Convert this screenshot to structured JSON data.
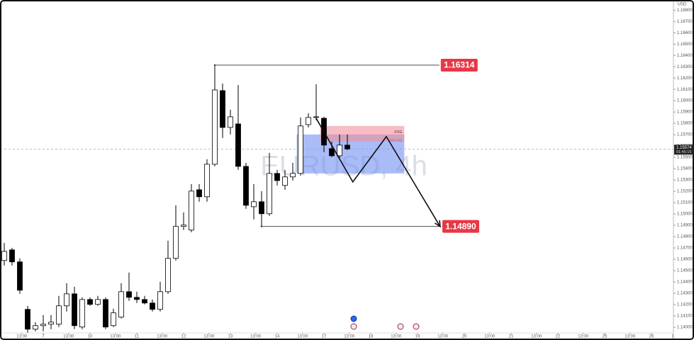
{
  "chart_data": {
    "type": "candlestick",
    "watermark": "EURUSD, 4h",
    "currency": "USD",
    "categories": [
      null,
      null,
      null,
      null,
      null,
      null,
      null,
      null,
      null,
      null,
      null,
      null,
      null,
      null,
      null,
      null,
      null,
      null,
      null,
      null,
      null,
      null,
      null,
      null,
      null,
      null,
      null,
      null,
      null,
      null,
      null,
      null,
      null,
      null,
      null,
      null,
      null,
      null,
      null,
      null,
      null,
      null,
      null,
      null,
      null
    ],
    "open": [
      1.14589,
      1.14683,
      1.14577,
      1.14158,
      1.13983,
      1.14014,
      1.14027,
      1.14027,
      1.14189,
      1.14295,
      1.14002,
      1.14245,
      1.14202,
      1.14245,
      1.14014,
      1.14089,
      1.14314,
      1.14264,
      1.14245,
      1.14214,
      1.14158,
      1.14314,
      1.14608,
      1.1489,
      1.14858,
      1.15214,
      1.15152,
      1.15439,
      1.16089,
      1.15764,
      1.15795,
      1.1542,
      1.15064,
      1.15108,
      1.15002,
      1.15358,
      1.15252,
      1.15327,
      1.15358,
      1.15789,
      1.15852,
      1.15845,
      1.15577,
      1.15514,
      1.15608
    ],
    "high": [
      1.14745,
      1.14701,
      1.14608,
      1.14189,
      1.14045,
      1.14108,
      1.14108,
      1.14277,
      1.14389,
      1.14358,
      1.14264,
      1.14264,
      1.14277,
      1.14264,
      1.14164,
      1.14389,
      1.14483,
      1.14314,
      1.14277,
      1.14245,
      1.14402,
      1.14764,
      1.15077,
      1.15014,
      1.15264,
      1.15264,
      1.15483,
      1.16314,
      1.16152,
      1.1592,
      1.16139,
      1.15452,
      1.15264,
      1.15202,
      1.15539,
      1.15389,
      1.15389,
      1.15452,
      1.15852,
      1.15889,
      1.16145,
      1.15858,
      1.15639,
      1.15702,
      1.15702
    ],
    "low": [
      1.14545,
      1.14545,
      1.14295,
      1.13952,
      1.13964,
      1.13964,
      1.13983,
      1.14002,
      1.14139,
      1.13983,
      1.13983,
      1.14189,
      1.14189,
      1.13983,
      1.14002,
      1.14077,
      1.14233,
      1.14214,
      1.14202,
      1.14139,
      1.14139,
      1.14295,
      1.14589,
      1.14858,
      1.14839,
      1.15108,
      1.15108,
      1.1542,
      1.1567,
      1.15702,
      1.15389,
      1.15045,
      1.14952,
      1.1489,
      1.14983,
      1.15252,
      1.15214,
      1.15295,
      1.15339,
      1.15764,
      1.15827,
      1.15545,
      1.15502,
      1.15483,
      1.15564
    ],
    "close": [
      1.1467,
      1.14577,
      1.14327,
      1.13983,
      1.14014,
      1.14027,
      1.14045,
      1.14189,
      1.14295,
      1.14014,
      1.14245,
      1.14202,
      1.14245,
      1.14002,
      1.14127,
      1.14314,
      1.14264,
      1.14245,
      1.14214,
      1.14158,
      1.14314,
      1.14608,
      1.1489,
      1.14902,
      1.15202,
      1.15152,
      1.15439,
      1.16095,
      1.15764,
      1.15858,
      1.1542,
      1.15077,
      1.15108,
      1.15002,
      1.15358,
      1.15295,
      1.15327,
      1.15358,
      1.15777,
      1.15852,
      1.15858,
      1.15608,
      1.15514,
      1.15608,
      1.15574
    ],
    "up_color": "#ffffff",
    "down_color": "#000000",
    "xlim": [
      -0.545,
      85.82
    ],
    "ylim": [
      1.1395,
      1.16889
    ],
    "xticks": [
      {
        "value": 2.25,
        "label": "13:00"
      },
      {
        "value": 5,
        "label": "7"
      },
      {
        "value": 8.25,
        "label": "13:00"
      },
      {
        "value": 11,
        "label": "10"
      },
      {
        "value": 14.25,
        "label": "13:00"
      },
      {
        "value": 17,
        "label": "11"
      },
      {
        "value": 20.25,
        "label": "13:00"
      },
      {
        "value": 23,
        "label": "12"
      },
      {
        "value": 26.25,
        "label": "13:00"
      },
      {
        "value": 29,
        "label": "13"
      },
      {
        "value": 32.25,
        "label": "13:00"
      },
      {
        "value": 35,
        "label": "14"
      },
      {
        "value": 38.25,
        "label": "13:00"
      },
      {
        "value": 41,
        "label": "17"
      },
      {
        "value": 44.25,
        "label": "13:00"
      },
      {
        "value": 47,
        "label": "18"
      },
      {
        "value": 50.25,
        "label": "13:00"
      },
      {
        "value": 53,
        "label": "19"
      },
      {
        "value": 56.25,
        "label": "13:00"
      },
      {
        "value": 59,
        "label": "20"
      },
      {
        "value": 62.25,
        "label": "13:00"
      },
      {
        "value": 65,
        "label": "21"
      },
      {
        "value": 68.25,
        "label": "13:00"
      },
      {
        "value": 71,
        "label": "22"
      },
      {
        "value": 74.25,
        "label": "13:00"
      },
      {
        "value": 77,
        "label": "25"
      },
      {
        "value": 80.25,
        "label": "13:00"
      },
      {
        "value": 83,
        "label": "26"
      },
      {
        "value": 86.25,
        "label": "13:00"
      }
    ],
    "yticks": [
      {
        "value": 1.14,
        "label": "1.14000"
      },
      {
        "value": 1.141,
        "label": "1.14100"
      },
      {
        "value": 1.142,
        "label": "1.14200"
      },
      {
        "value": 1.143,
        "label": "1.14300"
      },
      {
        "value": 1.144,
        "label": "1.14400"
      },
      {
        "value": 1.145,
        "label": "1.14500"
      },
      {
        "value": 1.146,
        "label": "1.14600"
      },
      {
        "value": 1.147,
        "label": "1.14700"
      },
      {
        "value": 1.148,
        "label": "1.14800"
      },
      {
        "value": 1.149,
        "label": "1.14900"
      },
      {
        "value": 1.15,
        "label": "1.15000"
      },
      {
        "value": 1.151,
        "label": "1.15100"
      },
      {
        "value": 1.152,
        "label": "1.15200"
      },
      {
        "value": 1.153,
        "label": "1.15300"
      },
      {
        "value": 1.154,
        "label": "1.15400"
      },
      {
        "value": 1.155,
        "label": "1.15500"
      },
      {
        "value": 1.156,
        "label": "1.15600"
      },
      {
        "value": 1.157,
        "label": "1.15700"
      },
      {
        "value": 1.158,
        "label": "1.15800"
      },
      {
        "value": 1.159,
        "label": "1.15900"
      },
      {
        "value": 1.16,
        "label": "1.16000"
      },
      {
        "value": 1.161,
        "label": "1.16100"
      },
      {
        "value": 1.162,
        "label": "1.16200"
      },
      {
        "value": 1.163,
        "label": "1.16300"
      },
      {
        "value": 1.164,
        "label": "1.16400"
      },
      {
        "value": 1.165,
        "label": "1.16500"
      },
      {
        "value": 1.166,
        "label": "1.16600"
      },
      {
        "value": 1.167,
        "label": "1.16700"
      },
      {
        "value": 1.168,
        "label": "1.16800"
      }
    ],
    "current_price": {
      "value": 1.15574,
      "label": "1.15574",
      "countdown": "01:45:15"
    },
    "zones": [
      {
        "name": "H4 FVG",
        "top": 1.15702,
        "bottom": 1.15358,
        "start": 37.5,
        "end": 51.3,
        "color": "#6f8ff2"
      },
      {
        "name": "-FVG",
        "top": 1.15777,
        "bottom": 1.15639,
        "start": 40.5,
        "end": 51.3,
        "color": "#f3909c"
      }
    ],
    "levels": [
      {
        "value": 1.16314,
        "label": "1.16314",
        "start": 27,
        "end": 55.8,
        "color": "#e63946"
      },
      {
        "value": 1.1489,
        "label": "1.14890",
        "start": 33,
        "end": 56,
        "color": "#e63946"
      }
    ],
    "projection": {
      "x": [
        40,
        44.7,
        49,
        55.9
      ],
      "y": [
        1.15845,
        1.15283,
        1.15683,
        1.14889
      ]
    }
  }
}
